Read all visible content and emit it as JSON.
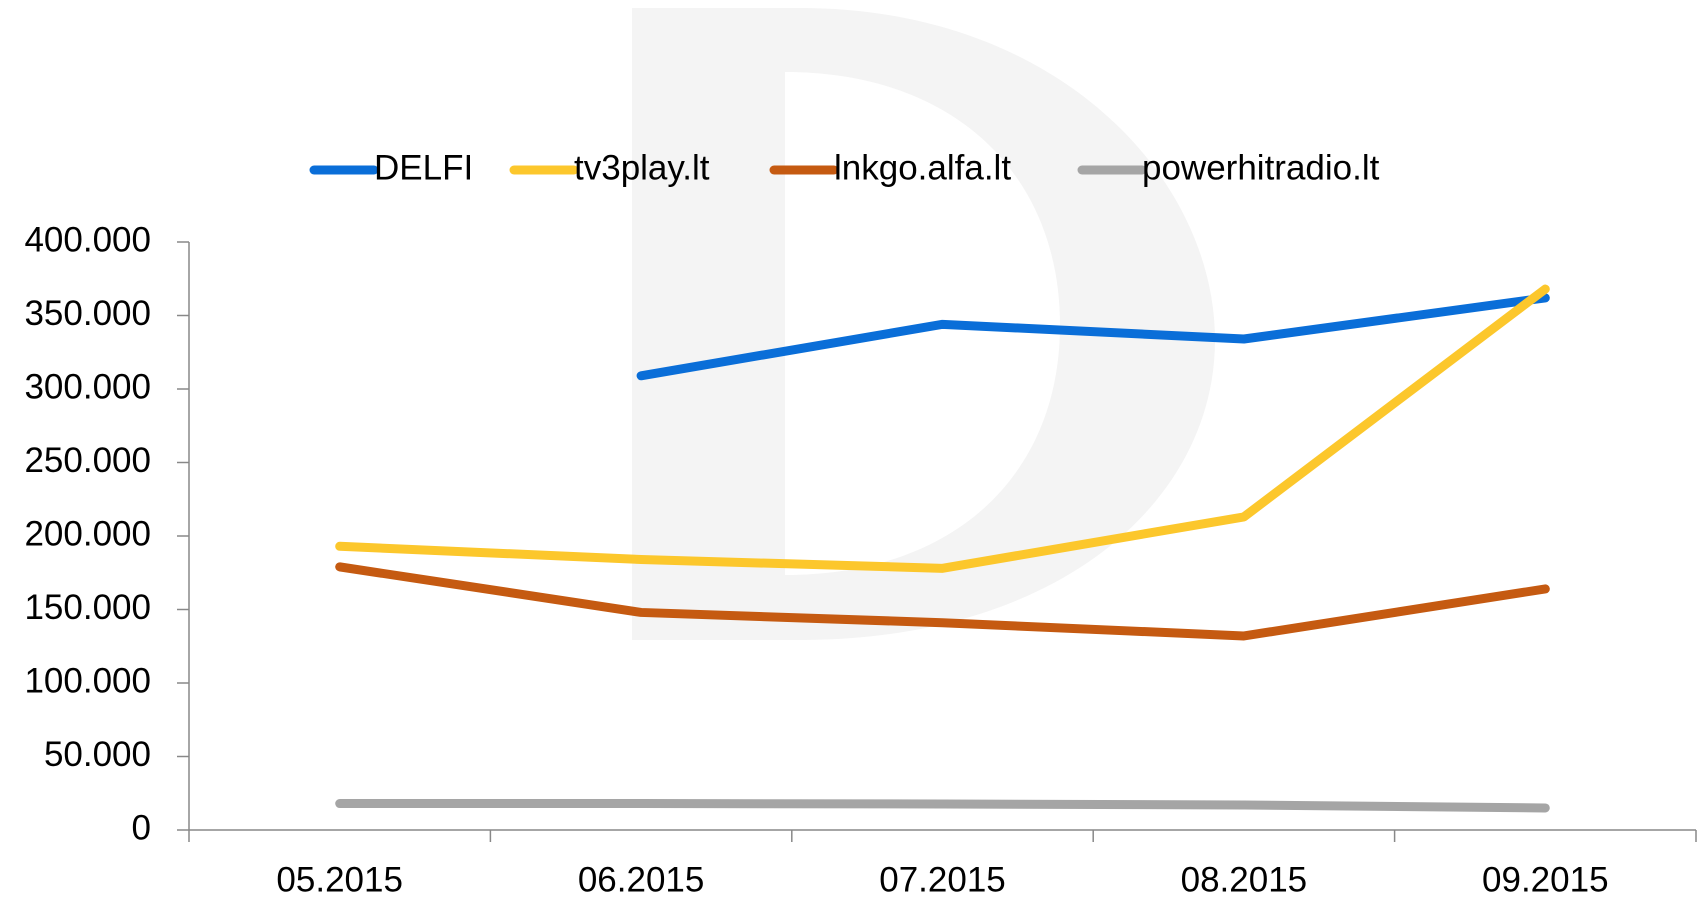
{
  "chart_data": {
    "type": "line",
    "categories": [
      "05.2015",
      "06.2015",
      "07.2015",
      "08.2015",
      "09.2015"
    ],
    "series": [
      {
        "name": "DELFI",
        "color": "#0a6ed8",
        "values": [
          null,
          309000,
          344000,
          334000,
          362000
        ]
      },
      {
        "name": "tv3play.lt",
        "color": "#fcc72c",
        "values": [
          193000,
          184000,
          178000,
          213000,
          368000
        ]
      },
      {
        "name": "lnkgo.alfa.lt",
        "color": "#c55a11",
        "values": [
          179000,
          148000,
          141000,
          132000,
          164000
        ]
      },
      {
        "name": "powerhitradio.lt",
        "color": "#a5a5a5",
        "values": [
          18000,
          18000,
          17700,
          17000,
          15000
        ]
      }
    ],
    "ylim": [
      0,
      400000
    ],
    "yticks": [
      0,
      {
        "value": 50000,
        "label": "50.000"
      },
      {
        "value": 100000,
        "label": "100.000"
      },
      {
        "value": 150000,
        "label": "150.000"
      },
      {
        "value": 200000,
        "label": "200.000"
      },
      {
        "value": 250000,
        "label": "250.000"
      },
      {
        "value": 300000,
        "label": "300.000"
      },
      {
        "value": 350000,
        "label": "350.000"
      },
      {
        "value": 400000,
        "label": "400.000"
      }
    ],
    "legend": "top"
  }
}
